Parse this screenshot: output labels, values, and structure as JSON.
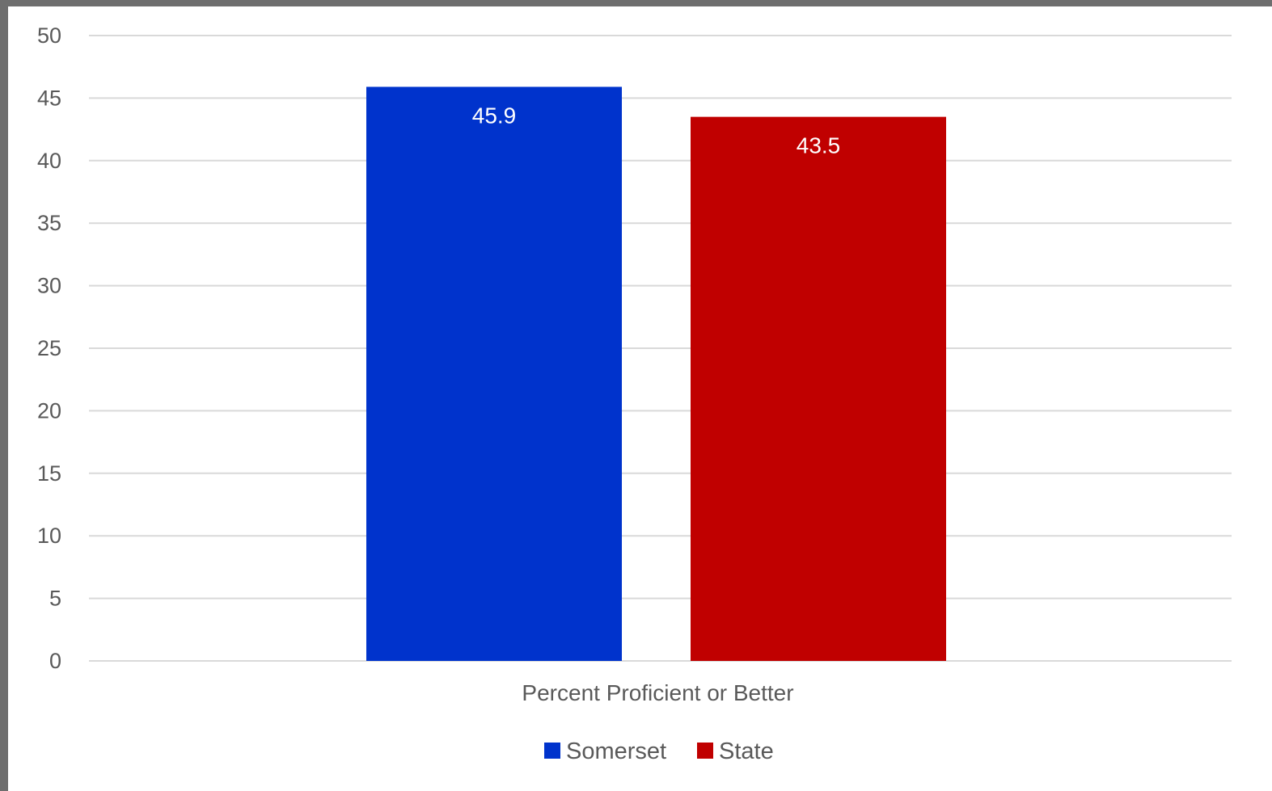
{
  "chart_data": {
    "type": "bar",
    "categories": [
      "Percent Proficient or Better"
    ],
    "series": [
      {
        "name": "Somerset",
        "values": [
          45.9
        ],
        "color": "#0033cc"
      },
      {
        "name": "State",
        "values": [
          43.5
        ],
        "color": "#c00000"
      }
    ],
    "ylim": [
      0,
      50
    ],
    "yticks": [
      0,
      5,
      10,
      15,
      20,
      25,
      30,
      35,
      40,
      45,
      50
    ],
    "data_labels": true,
    "grid": true,
    "legend_position": "bottom"
  }
}
